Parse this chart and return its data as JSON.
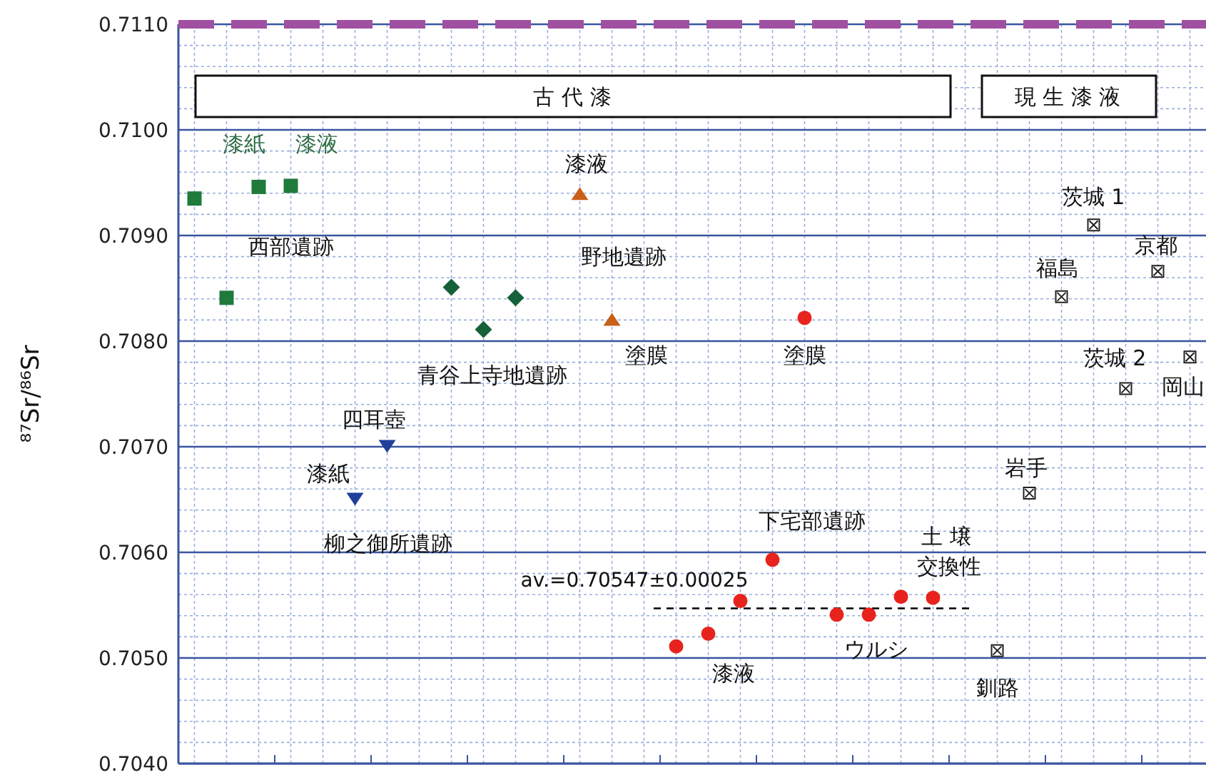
{
  "chart_data": {
    "type": "scatter",
    "ylabel": "⁸⁷Sr/⁸⁶Sr",
    "categories": [
      null,
      null,
      null,
      null,
      null,
      null,
      null,
      null,
      null,
      null,
      null,
      null,
      null,
      null,
      null,
      null,
      null,
      null,
      null,
      null,
      null,
      null,
      null,
      null,
      null,
      null,
      null,
      null,
      null,
      null,
      null,
      null
    ],
    "series": [
      {
        "color": "#1e7b3c",
        "marker": "square",
        "values": [
          0.70935,
          0.70841,
          0.70946,
          0.70947,
          null,
          null,
          null,
          null,
          null,
          null,
          null,
          null,
          null,
          null,
          null,
          null,
          null,
          null,
          null,
          null,
          null,
          null,
          null,
          null,
          null,
          null,
          null,
          null,
          null,
          null,
          null,
          null
        ]
      },
      {
        "color": "#16613a",
        "marker": "diamond",
        "values": [
          null,
          null,
          null,
          null,
          null,
          null,
          null,
          null,
          0.70851,
          0.70811,
          0.70841,
          null,
          null,
          null,
          null,
          null,
          null,
          null,
          null,
          null,
          null,
          null,
          null,
          null,
          null,
          null,
          null,
          null,
          null,
          null,
          null,
          null
        ]
      },
      {
        "color": "#c8601a",
        "marker": "triangle",
        "values": [
          null,
          null,
          null,
          null,
          null,
          null,
          null,
          null,
          null,
          null,
          null,
          null,
          0.70939,
          0.7082,
          null,
          null,
          null,
          null,
          null,
          null,
          null,
          null,
          null,
          null,
          null,
          null,
          null,
          null,
          null,
          null,
          null,
          null
        ]
      },
      {
        "color": "#1f3f9a",
        "marker": "triangle-down",
        "values": [
          null,
          null,
          null,
          null,
          null,
          0.70651,
          0.70701,
          null,
          null,
          null,
          null,
          null,
          null,
          null,
          null,
          null,
          null,
          null,
          null,
          null,
          null,
          null,
          null,
          null,
          null,
          null,
          null,
          null,
          null,
          null,
          null,
          null
        ]
      },
      {
        "color": "#e8231e",
        "marker": "circle",
        "values": [
          null,
          null,
          null,
          null,
          null,
          null,
          null,
          null,
          null,
          null,
          null,
          null,
          null,
          null,
          null,
          0.70511,
          0.70523,
          0.70554,
          0.70593,
          0.70822,
          0.70541,
          0.70541,
          0.70558,
          0.70557,
          null,
          null,
          null,
          null,
          null,
          null,
          null,
          null
        ]
      },
      {
        "color": "#222222",
        "marker": "cross",
        "values": [
          null,
          null,
          null,
          null,
          null,
          null,
          null,
          null,
          null,
          null,
          null,
          null,
          null,
          null,
          null,
          null,
          null,
          null,
          null,
          null,
          null,
          null,
          null,
          null,
          null,
          0.70507,
          0.70656,
          0.70842,
          0.7091,
          0.70755,
          0.70866,
          0.70785
        ]
      }
    ],
    "ylim": [
      0.704,
      0.711
    ],
    "yticks": [
      {
        "value": 0.704,
        "label": "0.7040"
      },
      {
        "value": 0.705,
        "label": "0.7050"
      },
      {
        "value": 0.706,
        "label": "0.7060"
      },
      {
        "value": 0.707,
        "label": "0.7070"
      },
      {
        "value": 0.708,
        "label": "0.7080"
      },
      {
        "value": 0.709,
        "label": "0.7090"
      },
      {
        "value": 0.71,
        "label": "0.7100"
      },
      {
        "value": 0.711,
        "label": "0.7110"
      }
    ],
    "grid": true,
    "ref_lines": [
      {
        "axis": "y",
        "value": 0.711,
        "color": "#a050a0",
        "line_style": "dashed"
      },
      {
        "axis": "y",
        "value": 0.70547,
        "label": "av.=0.70547±0.00025",
        "color": "#000000",
        "line_style": "dashed"
      }
    ],
    "annotations": [
      "漆紙",
      "漆液",
      "西部遺跡",
      "漆液",
      "野地遺跡",
      "塗膜",
      "青谷上寺地遺跡",
      "塗膜",
      "四耳壺",
      "漆紙",
      "柳之御所遺跡",
      "下宅部遺跡",
      "土 壌",
      "交換性",
      "ウルシ",
      "漆液",
      "釧路",
      "岩手",
      "福島",
      "茨城 1",
      "京都",
      "茨城 2",
      "岡山",
      "古 代 漆",
      "現 生 漆 液"
    ]
  }
}
